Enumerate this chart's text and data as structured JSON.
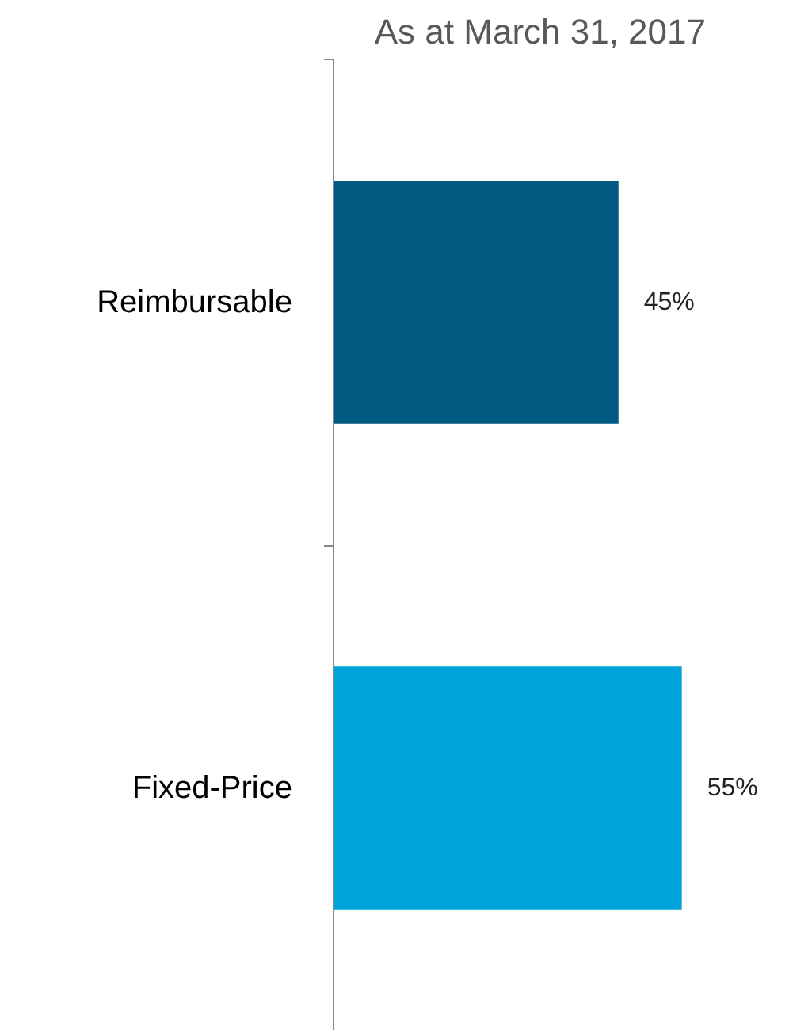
{
  "chart_data": {
    "type": "bar",
    "orientation": "horizontal",
    "title": "As at March 31, 2017",
    "categories": [
      "Reimbursable",
      "Fixed-Price"
    ],
    "values": [
      45,
      55
    ],
    "colors": [
      "#005a82",
      "#00a3dc"
    ],
    "data_labels": true,
    "value_labels": [
      "45%",
      "55%"
    ],
    "grid": false
  }
}
